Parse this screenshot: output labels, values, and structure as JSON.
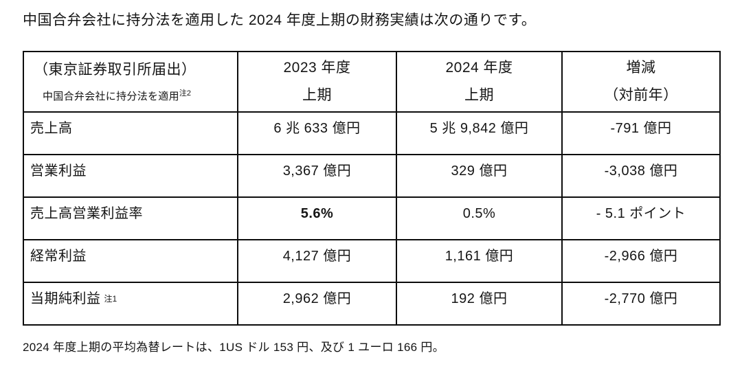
{
  "page": {
    "title": "中国合弁会社に持分法を適用した 2024 年度上期の財務実績は次の通りです。",
    "footnote": "2024 年度上期の平均為替レートは、1US ドル 153 円、及び 1 ユーロ 166 円。"
  },
  "table": {
    "header": {
      "col1_line1": "（東京証券取引所届出）",
      "col1_line2": "中国合弁会社に持分法を適用",
      "col1_note_ref": "注2",
      "col2_line1": "2023 年度",
      "col2_line2": "上期",
      "col3_line1": "2024 年度",
      "col3_line2": "上期",
      "col4_line1": "増減",
      "col4_line2": "（対前年）"
    },
    "rows": [
      {
        "label": "売上高",
        "note": "",
        "fy2023_h1": "6 兆 633 億円",
        "fy2024_h1": "5 兆 9,842 億円",
        "change": "-791 億円"
      },
      {
        "label": "営業利益",
        "note": "",
        "fy2023_h1": "3,367 億円",
        "fy2024_h1": "329 億円",
        "change": "-3,038 億円"
      },
      {
        "label": "売上高営業利益率",
        "note": "",
        "fy2023_h1": "5.6%",
        "fy2024_h1": "0.5%",
        "change": "- 5.1 ポイント"
      },
      {
        "label": "経常利益",
        "note": "",
        "fy2023_h1": "4,127 億円",
        "fy2024_h1": "1,161 億円",
        "change": "-2,966 億円"
      },
      {
        "label": "当期純利益",
        "note": "注1",
        "fy2023_h1": "2,962 億円",
        "fy2024_h1": "192 億円",
        "change": "-2,770 億円"
      }
    ]
  },
  "colors": {
    "background": "#ffffff",
    "text": "#141414",
    "table_border": "#0c0c0c"
  }
}
